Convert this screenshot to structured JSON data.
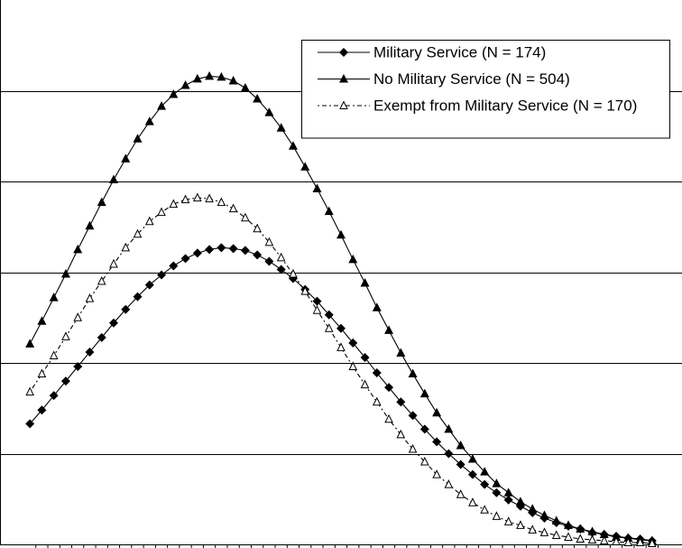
{
  "chart_data": {
    "type": "line",
    "x": [
      0,
      1,
      2,
      3,
      4,
      5,
      6,
      7,
      8,
      9,
      10,
      11,
      12,
      13,
      14,
      15,
      16,
      17,
      18,
      19,
      20,
      21,
      22,
      23,
      24,
      25,
      26,
      27,
      28,
      29,
      30,
      31,
      32,
      33,
      34,
      35,
      36,
      37,
      38,
      39,
      40,
      41,
      42,
      43,
      44,
      45,
      46,
      47,
      48,
      49,
      50,
      51,
      52
    ],
    "xlim": [
      -2.5,
      54.5
    ],
    "ylim": [
      0,
      6
    ],
    "yticks": [
      1,
      2,
      3,
      4,
      5
    ],
    "grid": true,
    "legend": "upper right",
    "series": [
      {
        "name": "Military Service (N = 174)",
        "color": "#000000",
        "marker": "diamond",
        "line_style": "solid",
        "values": [
          1.33,
          1.48,
          1.64,
          1.8,
          1.96,
          2.12,
          2.28,
          2.44,
          2.59,
          2.73,
          2.86,
          2.97,
          3.07,
          3.15,
          3.21,
          3.25,
          3.27,
          3.26,
          3.24,
          3.19,
          3.12,
          3.03,
          2.93,
          2.81,
          2.68,
          2.53,
          2.38,
          2.22,
          2.06,
          1.89,
          1.73,
          1.57,
          1.42,
          1.27,
          1.13,
          1.0,
          0.88,
          0.77,
          0.66,
          0.57,
          0.49,
          0.42,
          0.35,
          0.29,
          0.24,
          0.2,
          0.17,
          0.13,
          0.11,
          0.09,
          0.07,
          0.06,
          0.04
        ]
      },
      {
        "name": "No Military Service (N = 504)",
        "color": "#000000",
        "marker": "triangle",
        "line_style": "solid",
        "values": [
          2.21,
          2.46,
          2.72,
          2.98,
          3.25,
          3.51,
          3.77,
          4.02,
          4.25,
          4.47,
          4.66,
          4.83,
          4.96,
          5.06,
          5.13,
          5.16,
          5.15,
          5.11,
          5.03,
          4.91,
          4.76,
          4.59,
          4.39,
          4.16,
          3.92,
          3.67,
          3.41,
          3.14,
          2.88,
          2.61,
          2.36,
          2.11,
          1.88,
          1.66,
          1.45,
          1.27,
          1.09,
          0.94,
          0.8,
          0.67,
          0.57,
          0.47,
          0.39,
          0.32,
          0.26,
          0.21,
          0.17,
          0.14,
          0.11,
          0.08,
          0.07,
          0.05,
          0.04
        ]
      },
      {
        "name": "Exempt from Military Service (N = 170)",
        "color": "#000000",
        "marker": "open-triangle",
        "line_style": "dashdot",
        "values": [
          1.68,
          1.88,
          2.08,
          2.29,
          2.5,
          2.71,
          2.9,
          3.09,
          3.27,
          3.42,
          3.56,
          3.66,
          3.75,
          3.8,
          3.82,
          3.81,
          3.77,
          3.7,
          3.6,
          3.48,
          3.33,
          3.16,
          2.98,
          2.79,
          2.58,
          2.38,
          2.17,
          1.96,
          1.76,
          1.57,
          1.38,
          1.21,
          1.05,
          0.91,
          0.77,
          0.66,
          0.55,
          0.46,
          0.38,
          0.31,
          0.25,
          0.21,
          0.16,
          0.13,
          0.1,
          0.08,
          0.06,
          0.05,
          0.04,
          0.03,
          0.02,
          0.02,
          0.01
        ]
      }
    ]
  }
}
